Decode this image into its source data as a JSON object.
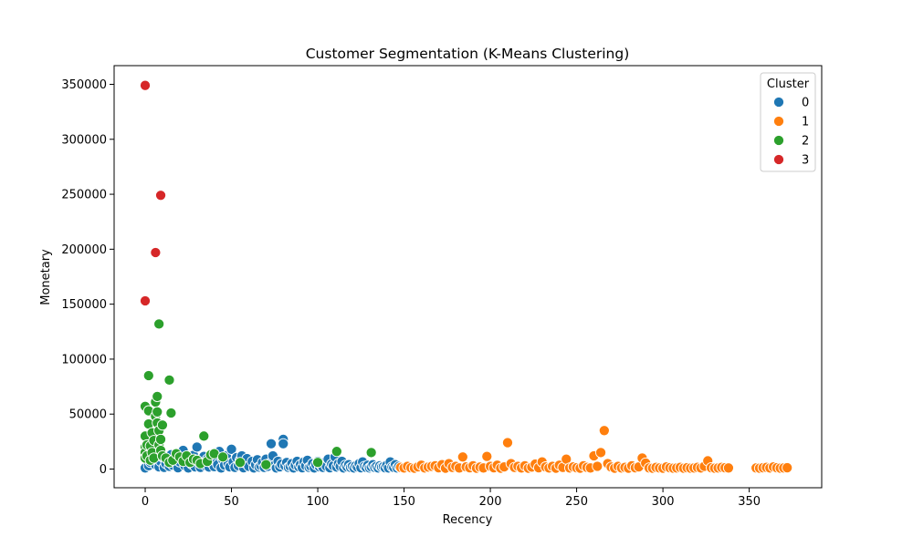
{
  "chart_data": {
    "type": "scatter",
    "title": "Customer Segmentation (K-Means Clustering)",
    "xlabel": "Recency",
    "ylabel": "Monetary",
    "xlim": [
      -18,
      392
    ],
    "ylim": [
      -17000,
      367000
    ],
    "xticks": [
      0,
      50,
      100,
      150,
      200,
      250,
      300,
      350
    ],
    "yticks": [
      0,
      50000,
      100000,
      150000,
      200000,
      250000,
      300000,
      350000
    ],
    "grid": false,
    "legend": {
      "title": "Cluster",
      "position": "top-right"
    },
    "series": [
      {
        "name": "0",
        "color": "#1f77b4",
        "points": [
          [
            0,
            1000
          ],
          [
            2,
            3000
          ],
          [
            3,
            6000
          ],
          [
            4,
            9000
          ],
          [
            5,
            12000
          ],
          [
            6,
            4000
          ],
          [
            8,
            2000
          ],
          [
            9,
            7000
          ],
          [
            10,
            11000
          ],
          [
            11,
            1500
          ],
          [
            12,
            5000
          ],
          [
            13,
            8500
          ],
          [
            14,
            2500
          ],
          [
            15,
            13000
          ],
          [
            16,
            3500
          ],
          [
            18,
            9500
          ],
          [
            19,
            1200
          ],
          [
            20,
            6500
          ],
          [
            21,
            14000
          ],
          [
            22,
            17000
          ],
          [
            23,
            3000
          ],
          [
            24,
            7500
          ],
          [
            25,
            1000
          ],
          [
            26,
            10000
          ],
          [
            27,
            4500
          ],
          [
            28,
            12500
          ],
          [
            29,
            2000
          ],
          [
            30,
            20000
          ],
          [
            31,
            8000
          ],
          [
            32,
            1500
          ],
          [
            33,
            5500
          ],
          [
            34,
            11500
          ],
          [
            35,
            3000
          ],
          [
            36,
            9000
          ],
          [
            37,
            1800
          ],
          [
            38,
            6000
          ],
          [
            39,
            13500
          ],
          [
            40,
            2200
          ],
          [
            41,
            7000
          ],
          [
            42,
            4000
          ],
          [
            43,
            16000
          ],
          [
            44,
            1000
          ],
          [
            45,
            8500
          ],
          [
            46,
            3500
          ],
          [
            47,
            12000
          ],
          [
            48,
            5000
          ],
          [
            49,
            2000
          ],
          [
            50,
            18000
          ],
          [
            51,
            6500
          ],
          [
            52,
            1500
          ],
          [
            53,
            10500
          ],
          [
            54,
            3000
          ],
          [
            55,
            8000
          ],
          [
            56,
            12000
          ],
          [
            57,
            1200
          ],
          [
            58,
            5500
          ],
          [
            59,
            9500
          ],
          [
            60,
            2500
          ],
          [
            62,
            7000
          ],
          [
            63,
            1000
          ],
          [
            64,
            4000
          ],
          [
            65,
            8500
          ],
          [
            66,
            1800
          ],
          [
            67,
            3000
          ],
          [
            68,
            6000
          ],
          [
            69,
            1500
          ],
          [
            70,
            9000
          ],
          [
            71,
            2500
          ],
          [
            72,
            5000
          ],
          [
            73,
            23000
          ],
          [
            74,
            12000
          ],
          [
            75,
            3500
          ],
          [
            76,
            1000
          ],
          [
            77,
            7000
          ],
          [
            78,
            2000
          ],
          [
            79,
            4500
          ],
          [
            80,
            27000
          ],
          [
            80,
            23000
          ],
          [
            81,
            3000
          ],
          [
            82,
            6000
          ],
          [
            83,
            1500
          ],
          [
            84,
            2500
          ],
          [
            85,
            5000
          ],
          [
            86,
            1000
          ],
          [
            87,
            3500
          ],
          [
            88,
            7000
          ],
          [
            89,
            2000
          ],
          [
            90,
            4000
          ],
          [
            91,
            1200
          ],
          [
            92,
            6500
          ],
          [
            93,
            3000
          ],
          [
            94,
            8000
          ],
          [
            95,
            1500
          ],
          [
            96,
            2500
          ],
          [
            97,
            5000
          ],
          [
            98,
            1000
          ],
          [
            99,
            4000
          ],
          [
            100,
            7000
          ],
          [
            101,
            2000
          ],
          [
            102,
            3500
          ],
          [
            103,
            1500
          ],
          [
            104,
            6000
          ],
          [
            105,
            2500
          ],
          [
            106,
            9000
          ],
          [
            107,
            1200
          ],
          [
            108,
            4500
          ],
          [
            109,
            3000
          ],
          [
            110,
            11000
          ],
          [
            111,
            1800
          ],
          [
            112,
            5000
          ],
          [
            113,
            2500
          ],
          [
            114,
            7000
          ],
          [
            115,
            1000
          ],
          [
            116,
            3500
          ],
          [
            117,
            2000
          ],
          [
            118,
            4000
          ],
          [
            119,
            1500
          ],
          [
            120,
            2500
          ],
          [
            121,
            1000
          ],
          [
            122,
            3000
          ],
          [
            123,
            1800
          ],
          [
            124,
            5000
          ],
          [
            125,
            1200
          ],
          [
            126,
            6500
          ],
          [
            127,
            2500
          ],
          [
            128,
            1500
          ],
          [
            129,
            3500
          ],
          [
            130,
            1000
          ],
          [
            131,
            2000
          ],
          [
            132,
            4000
          ],
          [
            133,
            1500
          ],
          [
            134,
            2500
          ],
          [
            135,
            1000
          ],
          [
            136,
            3000
          ],
          [
            137,
            1800
          ],
          [
            138,
            2200
          ],
          [
            139,
            1200
          ],
          [
            140,
            3500
          ],
          [
            141,
            1000
          ],
          [
            142,
            6500
          ],
          [
            143,
            2000
          ],
          [
            144,
            1500
          ],
          [
            145,
            4000
          ],
          [
            146,
            1000
          ],
          [
            147,
            2500
          ],
          [
            148,
            1200
          ]
        ]
      },
      {
        "name": "1",
        "color": "#ff7f0e",
        "points": [
          [
            148,
            1500
          ],
          [
            150,
            1000
          ],
          [
            152,
            2500
          ],
          [
            154,
            1200
          ],
          [
            156,
            800
          ],
          [
            158,
            2000
          ],
          [
            160,
            3500
          ],
          [
            162,
            1000
          ],
          [
            164,
            1800
          ],
          [
            166,
            2500
          ],
          [
            168,
            3000
          ],
          [
            170,
            1200
          ],
          [
            172,
            4000
          ],
          [
            174,
            800
          ],
          [
            176,
            5000
          ],
          [
            178,
            1500
          ],
          [
            180,
            2500
          ],
          [
            182,
            1000
          ],
          [
            184,
            11000
          ],
          [
            186,
            2000
          ],
          [
            188,
            1200
          ],
          [
            190,
            3000
          ],
          [
            192,
            800
          ],
          [
            194,
            1800
          ],
          [
            196,
            1000
          ],
          [
            198,
            11500
          ],
          [
            200,
            2500
          ],
          [
            202,
            1200
          ],
          [
            204,
            3500
          ],
          [
            206,
            800
          ],
          [
            208,
            2000
          ],
          [
            210,
            24000
          ],
          [
            212,
            5000
          ],
          [
            214,
            1500
          ],
          [
            216,
            2500
          ],
          [
            218,
            1000
          ],
          [
            220,
            3000
          ],
          [
            222,
            800
          ],
          [
            224,
            1800
          ],
          [
            226,
            4500
          ],
          [
            228,
            1200
          ],
          [
            230,
            6500
          ],
          [
            232,
            2000
          ],
          [
            234,
            1000
          ],
          [
            236,
            2500
          ],
          [
            238,
            800
          ],
          [
            240,
            3500
          ],
          [
            242,
            1500
          ],
          [
            244,
            9000
          ],
          [
            246,
            1000
          ],
          [
            248,
            2000
          ],
          [
            250,
            1200
          ],
          [
            252,
            800
          ],
          [
            254,
            3000
          ],
          [
            256,
            1500
          ],
          [
            258,
            1000
          ],
          [
            260,
            12000
          ],
          [
            262,
            2500
          ],
          [
            264,
            15000
          ],
          [
            266,
            35000
          ],
          [
            268,
            5000
          ],
          [
            270,
            1800
          ],
          [
            272,
            800
          ],
          [
            274,
            2500
          ],
          [
            276,
            1000
          ],
          [
            278,
            1500
          ],
          [
            280,
            800
          ],
          [
            282,
            3000
          ],
          [
            284,
            1200
          ],
          [
            286,
            2000
          ],
          [
            288,
            10000
          ],
          [
            290,
            5500
          ],
          [
            292,
            1000
          ],
          [
            294,
            800
          ],
          [
            296,
            1500
          ],
          [
            298,
            1000
          ],
          [
            300,
            800
          ],
          [
            302,
            2000
          ],
          [
            304,
            1200
          ],
          [
            306,
            800
          ],
          [
            308,
            1000
          ],
          [
            310,
            1500
          ],
          [
            312,
            800
          ],
          [
            314,
            1200
          ],
          [
            316,
            800
          ],
          [
            318,
            1000
          ],
          [
            320,
            1500
          ],
          [
            322,
            1000
          ],
          [
            324,
            2500
          ],
          [
            326,
            7500
          ],
          [
            328,
            1200
          ],
          [
            330,
            800
          ],
          [
            332,
            1000
          ],
          [
            334,
            1500
          ],
          [
            336,
            1200
          ],
          [
            338,
            1000
          ],
          [
            354,
            1000
          ],
          [
            356,
            800
          ],
          [
            358,
            1200
          ],
          [
            360,
            1500
          ],
          [
            362,
            1000
          ],
          [
            364,
            2000
          ],
          [
            366,
            1200
          ],
          [
            368,
            800
          ],
          [
            370,
            1000
          ],
          [
            372,
            1200
          ]
        ]
      },
      {
        "name": "2",
        "color": "#2ca02c",
        "points": [
          [
            0,
            57000
          ],
          [
            0,
            30000
          ],
          [
            0,
            20000
          ],
          [
            0,
            15000
          ],
          [
            0,
            10000
          ],
          [
            1,
            22000
          ],
          [
            1,
            12000
          ],
          [
            2,
            85000
          ],
          [
            2,
            53000
          ],
          [
            2,
            41000
          ],
          [
            3,
            21000
          ],
          [
            3,
            8000
          ],
          [
            4,
            33000
          ],
          [
            4,
            15000
          ],
          [
            5,
            26000
          ],
          [
            5,
            10000
          ],
          [
            6,
            61000
          ],
          [
            6,
            48000
          ],
          [
            7,
            66000
          ],
          [
            7,
            52000
          ],
          [
            7,
            42000
          ],
          [
            8,
            132000
          ],
          [
            8,
            35000
          ],
          [
            8,
            22000
          ],
          [
            9,
            27000
          ],
          [
            9,
            17000
          ],
          [
            10,
            40000
          ],
          [
            10,
            12000
          ],
          [
            12,
            10000
          ],
          [
            14,
            81000
          ],
          [
            14,
            6000
          ],
          [
            15,
            51000
          ],
          [
            16,
            8000
          ],
          [
            18,
            14000
          ],
          [
            20,
            11000
          ],
          [
            22,
            7000
          ],
          [
            24,
            12000
          ],
          [
            26,
            6000
          ],
          [
            28,
            9000
          ],
          [
            30,
            8000
          ],
          [
            32,
            5000
          ],
          [
            34,
            30000
          ],
          [
            36,
            7000
          ],
          [
            38,
            13000
          ],
          [
            40,
            14000
          ],
          [
            45,
            11000
          ],
          [
            55,
            6000
          ],
          [
            70,
            4000
          ],
          [
            100,
            6000
          ],
          [
            111,
            16000
          ],
          [
            131,
            15000
          ]
        ]
      },
      {
        "name": "3",
        "color": "#d62728",
        "points": [
          [
            0,
            349000
          ],
          [
            9,
            249000
          ],
          [
            6,
            197000
          ],
          [
            0,
            153000
          ]
        ]
      }
    ]
  }
}
